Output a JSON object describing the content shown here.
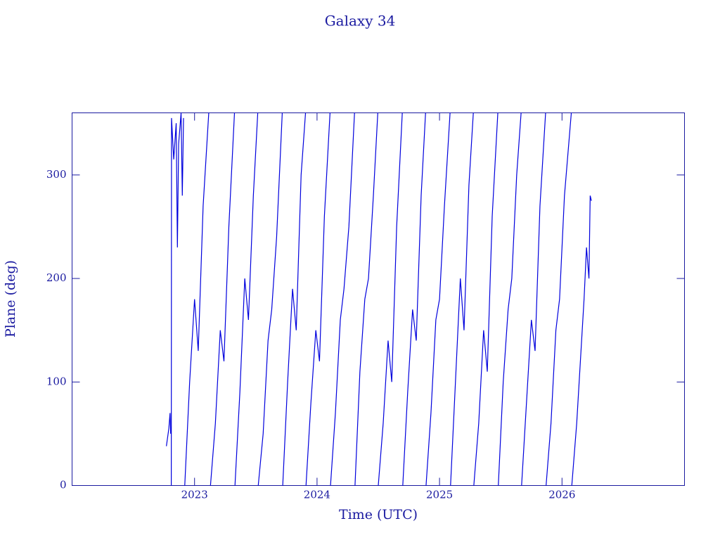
{
  "chart_data": {
    "type": "line",
    "title": "Galaxy 34",
    "x_label": "Time (UTC)",
    "y_label": "Plane (deg)",
    "xlim": [
      2022,
      2027
    ],
    "xticks": [
      2023,
      2024,
      2025,
      2026
    ],
    "ylim": [
      0,
      360
    ],
    "yticks": [
      0,
      100,
      200,
      300
    ],
    "grid": false,
    "series": [
      {
        "name": "Plane",
        "color": "#0000dd",
        "x": [
          2022.77,
          2022.79,
          2022.8,
          2022.805,
          2022.806,
          2022.81,
          2022.812,
          2022.83,
          2022.85,
          2022.86,
          2022.87,
          2022.89,
          2022.9,
          2022.91,
          2022.919,
          2022.92,
          2022.96,
          2023.0,
          2023.03,
          2023.07,
          2023.116,
          2023.117,
          2023.13,
          2023.17,
          2023.21,
          2023.24,
          2023.28,
          2023.326,
          2023.327,
          2023.33,
          2023.37,
          2023.41,
          2023.44,
          2023.48,
          2023.516,
          2023.517,
          2023.52,
          2023.56,
          2023.6,
          2023.63,
          2023.67,
          2023.716,
          2023.717,
          2023.72,
          2023.76,
          2023.8,
          2023.83,
          2023.87,
          2023.906,
          2023.907,
          2023.91,
          2023.95,
          2023.99,
          2024.02,
          2024.06,
          2024.106,
          2024.107,
          2024.11,
          2024.15,
          2024.19,
          2024.22,
          2024.26,
          2024.306,
          2024.307,
          2024.31,
          2024.35,
          2024.39,
          2024.42,
          2024.46,
          2024.496,
          2024.497,
          2024.5,
          2024.54,
          2024.58,
          2024.61,
          2024.65,
          2024.696,
          2024.697,
          2024.7,
          2024.74,
          2024.78,
          2024.81,
          2024.85,
          2024.886,
          2024.887,
          2024.89,
          2024.93,
          2024.97,
          2025.0,
          2025.04,
          2025.086,
          2025.087,
          2025.09,
          2025.13,
          2025.17,
          2025.2,
          2025.24,
          2025.276,
          2025.277,
          2025.28,
          2025.32,
          2025.36,
          2025.39,
          2025.43,
          2025.476,
          2025.477,
          2025.48,
          2025.52,
          2025.56,
          2025.59,
          2025.63,
          2025.666,
          2025.667,
          2025.67,
          2025.71,
          2025.75,
          2025.78,
          2025.82,
          2025.866,
          2025.867,
          2025.87,
          2025.91,
          2025.95,
          2025.98,
          2026.02,
          2026.076,
          2026.077,
          2026.08,
          2026.12,
          2026.15,
          2026.18,
          2026.2,
          2026.22,
          2026.23,
          2026.24
        ],
        "values": [
          38,
          55,
          70,
          50,
          null,
          0,
          355,
          315,
          350,
          230,
          330,
          360,
          280,
          355,
          null,
          0,
          100,
          180,
          130,
          270,
          360,
          null,
          0,
          60,
          150,
          120,
          250,
          360,
          null,
          0,
          90,
          200,
          160,
          280,
          360,
          null,
          0,
          50,
          140,
          170,
          240,
          360,
          null,
          0,
          100,
          190,
          150,
          300,
          360,
          null,
          0,
          80,
          150,
          120,
          260,
          360,
          null,
          0,
          70,
          160,
          190,
          250,
          360,
          null,
          0,
          110,
          180,
          200,
          280,
          360,
          null,
          0,
          60,
          140,
          100,
          250,
          360,
          null,
          0,
          90,
          170,
          140,
          280,
          360,
          null,
          0,
          70,
          160,
          180,
          270,
          360,
          null,
          0,
          100,
          200,
          150,
          290,
          360,
          null,
          0,
          60,
          150,
          110,
          260,
          360,
          null,
          0,
          100,
          170,
          200,
          300,
          360,
          null,
          0,
          80,
          160,
          130,
          270,
          360,
          null,
          0,
          60,
          150,
          180,
          280,
          360,
          null,
          0,
          60,
          120,
          180,
          230,
          200,
          280,
          275
        ]
      }
    ]
  }
}
